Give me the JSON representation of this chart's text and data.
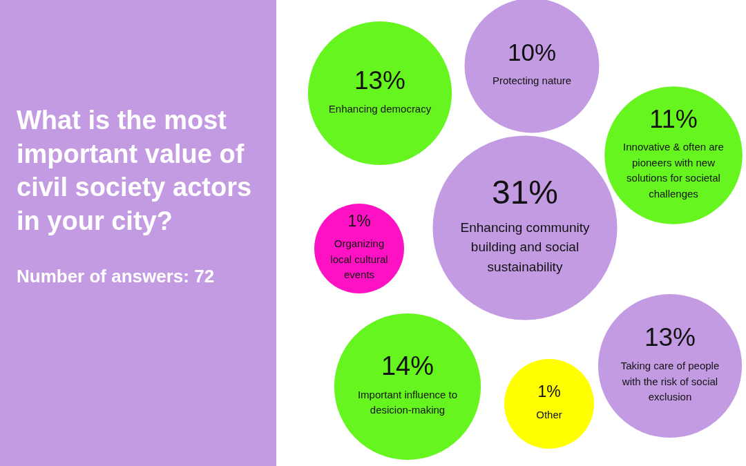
{
  "chart_data": {
    "type": "other",
    "title": "What is the most important value of civil society actors in your city?",
    "annotations": [
      "Number of answers: 72"
    ],
    "categories": [
      "Enhancing democracy",
      "Protecting nature",
      "Innovative & often are pioneers with new solutions for societal challenges",
      "Organizing local cultural events",
      "Enhancing community building and social sustainability",
      "Important influence to desicion-making",
      "Other",
      "Taking care of people with the risk of social exclusion"
    ],
    "values": [
      13,
      10,
      11,
      1,
      31,
      14,
      1,
      13
    ],
    "value_labels": [
      "13%",
      "10%",
      "11%",
      "1%",
      "31%",
      "14%",
      "1%",
      "13%"
    ],
    "colors": [
      "#66f51f",
      "#c39be3",
      "#66f51f",
      "#ff12c3",
      "#c39be3",
      "#66f51f",
      "#ffff00",
      "#c39be3"
    ]
  }
}
